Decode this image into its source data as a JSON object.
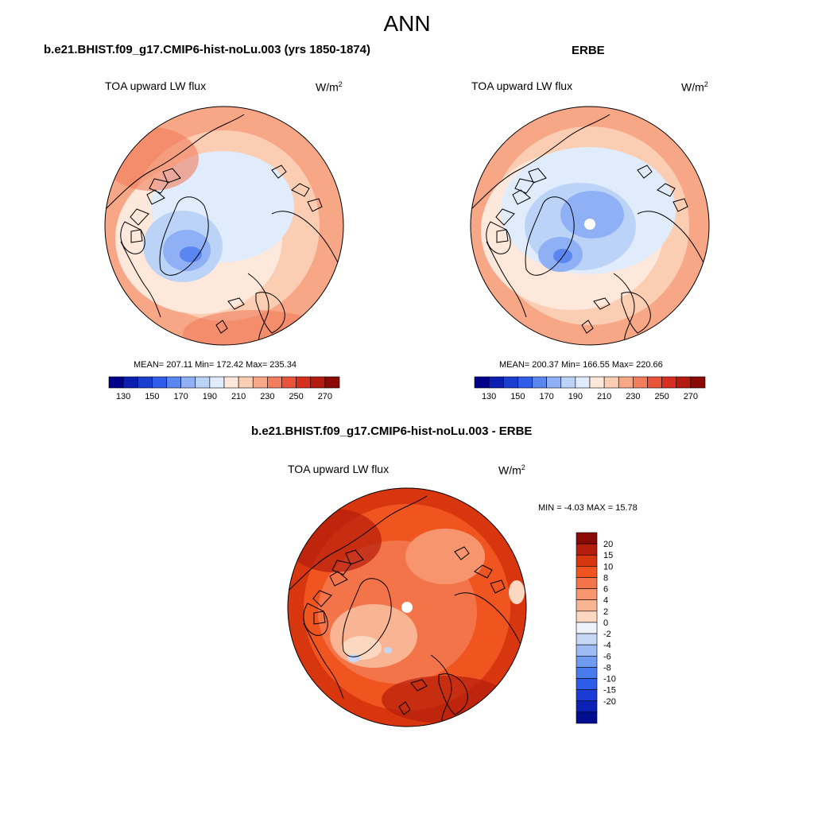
{
  "figure": {
    "title": "ANN"
  },
  "panels": [
    {
      "title": "b.e21.BHIST.f09_g17.CMIP6-hist-noLu.003 (yrs 1850-1874)",
      "variable": "TOA upward LW flux",
      "units_base": "W/m",
      "units_exp": "2",
      "stats": "MEAN= 207.11  Min= 172.42  Max= 235.34",
      "projection": "north-polar-stereographic",
      "polar_hole": false
    },
    {
      "title": "ERBE",
      "variable": "TOA upward LW flux",
      "units_base": "W/m",
      "units_exp": "2",
      "stats": "MEAN= 200.37  Min= 166.55  Max= 220.66",
      "projection": "north-polar-stereographic",
      "polar_hole": true
    },
    {
      "title": "b.e21.BHIST.f09_g17.CMIP6-hist-noLu.003 - ERBE",
      "variable": "TOA upward LW flux",
      "units_base": "W/m",
      "units_exp": "2",
      "stats": "MIN =  -4.03 MAX =  15.78",
      "projection": "north-polar-stereographic",
      "polar_hole": true
    }
  ],
  "colorbar_main": {
    "colors": [
      "#00008b",
      "#0a1fb0",
      "#1a3fd0",
      "#2f5ce8",
      "#5a86f0",
      "#8fb0f5",
      "#bcd3f8",
      "#e0ecfb",
      "#fde8db",
      "#fbcdb3",
      "#f7a686",
      "#f27d5c",
      "#e8533a",
      "#d62f1f",
      "#b31a10",
      "#8a0b05"
    ],
    "tick_labels": [
      "130",
      "150",
      "170",
      "190",
      "210",
      "230",
      "250",
      "270"
    ]
  },
  "colorbar_diff": {
    "colors": [
      "#8a0b05",
      "#b51d0c",
      "#d8360f",
      "#f05520",
      "#f4744a",
      "#f7956f",
      "#f9b593",
      "#fcd8c0",
      "#eef2fb",
      "#c7d8f7",
      "#9cbcf3",
      "#6f9bf0",
      "#4a7bee",
      "#2e5cea",
      "#1a3bd6",
      "#0b22b5",
      "#000e8f"
    ],
    "tick_labels": [
      "20",
      "15",
      "10",
      "8",
      "6",
      "4",
      "2",
      "0",
      "-2",
      "-4",
      "-6",
      "-8",
      "-10",
      "-15",
      "-20"
    ]
  }
}
